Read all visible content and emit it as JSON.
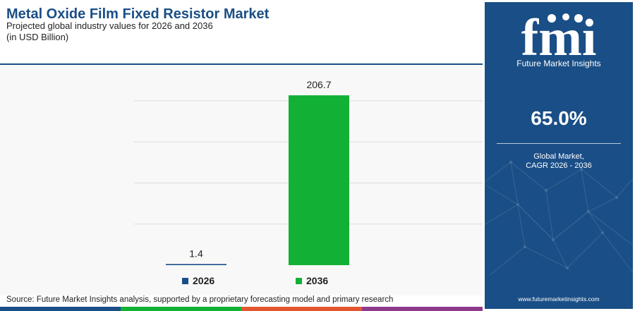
{
  "title": "Metal Oxide Film Fixed Resistor Market",
  "subtitle": "Projected global industry values for 2026 and 2036",
  "unit": "(in USD Billion)",
  "chart_data": {
    "type": "bar",
    "categories": [
      "2026",
      "2036"
    ],
    "values": [
      1.4,
      206.7
    ],
    "value_labels": [
      "1.4",
      "206.7"
    ],
    "colors": [
      "#1a4e86",
      "#12b135"
    ],
    "ylim": [
      0,
      230
    ],
    "grid": true,
    "legend": "bottom",
    "xlabel": "",
    "ylabel": ""
  },
  "legend": [
    {
      "label": "2026",
      "color": "#1a4e86"
    },
    {
      "label": "2036",
      "color": "#12b135"
    }
  ],
  "source": "Source: Future Market Insights analysis, supported by a proprietary forecasting model and primary research",
  "bottom_bar_colors": [
    "#1a4e86",
    "#12b135",
    "#e4572e",
    "#8e3a8c"
  ],
  "panel": {
    "logo_text": "fmi",
    "logo_tagline": "Future Market Insights",
    "cagr_value": "65.0%",
    "cagr_label_line1": "Global Market,",
    "cagr_label_line2": "CAGR 2026 - 2036",
    "website": "www.futuremarketinsights.com",
    "background_color": "#1a4e86"
  }
}
